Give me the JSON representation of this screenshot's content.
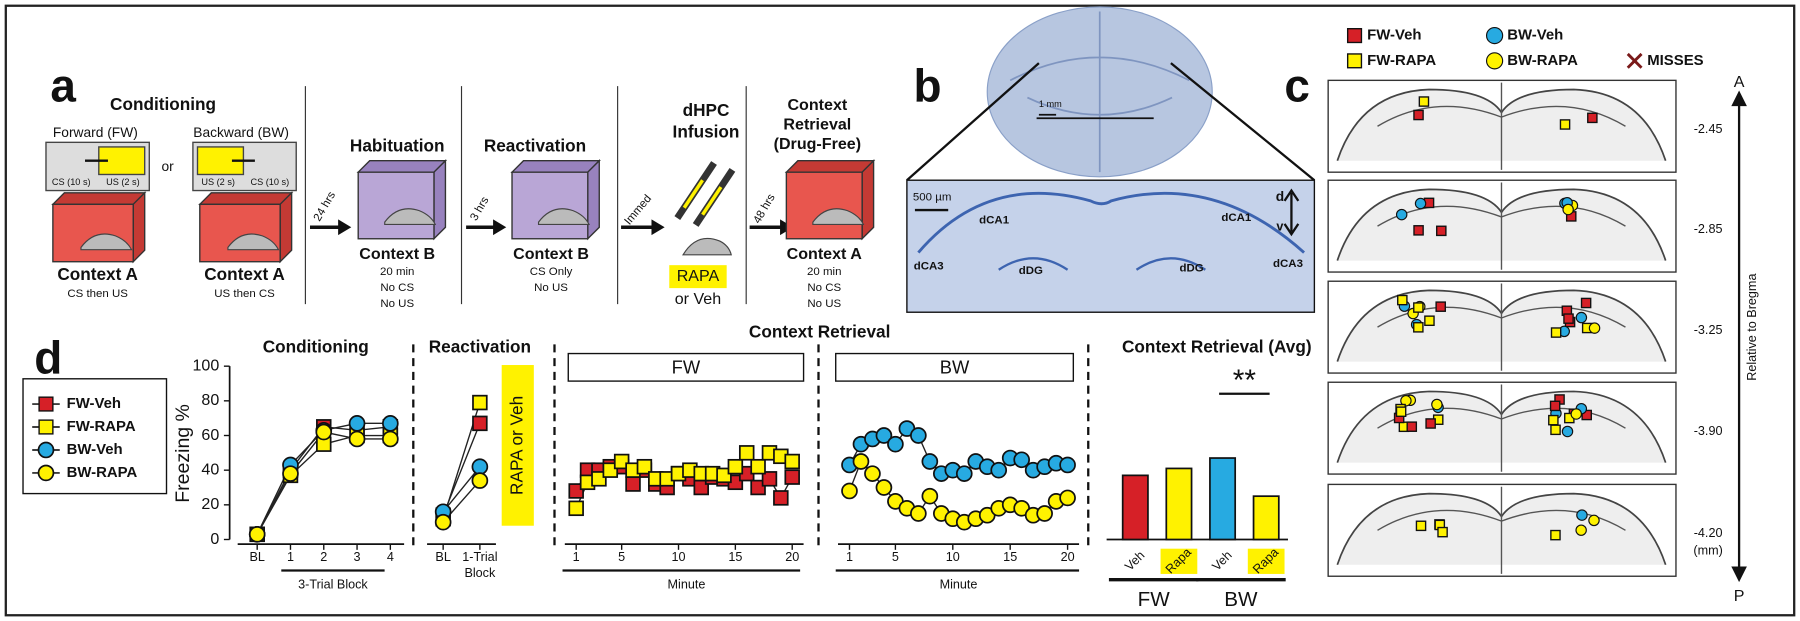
{
  "panel_a": {
    "label": "a",
    "conditioning": {
      "title": "Conditioning",
      "forward": "Forward (FW)",
      "backward": "Backward (BW)",
      "or": "or",
      "fw_cs": "CS (10 s)",
      "fw_us": "US (2 s)",
      "bw_us": "US (2 s)",
      "bw_cs": "CS (10 s)",
      "fw_context": "Context A",
      "fw_note": "CS then US",
      "bw_context": "Context A",
      "bw_note": "US then CS"
    },
    "delay1": "24 hrs",
    "habituation": {
      "title": "Habituation",
      "context": "Context B",
      "lines": [
        "20 min",
        "No CS",
        "No US"
      ]
    },
    "delay2": "3 hrs",
    "reactivation": {
      "title": "Reactivation",
      "context": "Context B",
      "lines": [
        "CS Only",
        "No US"
      ]
    },
    "delay3": "Immed",
    "infusion": {
      "title_lines": [
        "dHPC",
        "Infusion"
      ],
      "drug": "RAPA",
      "alt": "or Veh"
    },
    "delay4": "48 hrs",
    "retrieval": {
      "title_lines": [
        "Context",
        "Retrieval",
        "(Drug-Free)"
      ],
      "context": "Context A",
      "lines": [
        "20 min",
        "No CS",
        "No US"
      ]
    }
  },
  "panel_b": {
    "label": "b",
    "scale_top": "1 mm",
    "scale_detail": "500 µm",
    "regions": [
      "dCA1",
      "dCA1",
      "dCA3",
      "dDG",
      "dDG",
      "dCA3"
    ],
    "dorsal": "d",
    "ventral": "v"
  },
  "panel_c": {
    "label": "c",
    "legend": [
      "FW-Veh",
      "BW-Veh",
      "FW-RAPA",
      "BW-RAPA",
      "MISSES"
    ],
    "levels": [
      "-2.45",
      "-2.85",
      "-3.25",
      "-3.90",
      "-4.20"
    ],
    "unit": "(mm)",
    "anterior": "A",
    "posterior": "P",
    "axis_label": "Relative to Bregma"
  },
  "panel_d": {
    "label": "d",
    "heading": "Context Retrieval"
  },
  "chart_data": [
    {
      "type": "line",
      "title": "Conditioning",
      "x_label": "3-Trial Block",
      "y_label": "Freezing %",
      "categories": [
        "BL",
        "1",
        "2",
        "3",
        "4"
      ],
      "ylim": [
        0,
        100
      ],
      "yticks": [
        0,
        20,
        40,
        60,
        80,
        100
      ],
      "series": [
        {
          "name": "FW-Veh",
          "color": "#d62027",
          "marker": "square",
          "values": [
            3,
            40,
            65,
            63,
            65
          ]
        },
        {
          "name": "FW-RAPA",
          "color": "#fff200",
          "marker": "square",
          "values": [
            3,
            37,
            55,
            60,
            60
          ]
        },
        {
          "name": "BW-Veh",
          "color": "#27aae1",
          "marker": "circle",
          "values": [
            3,
            43,
            63,
            67,
            67
          ]
        },
        {
          "name": "BW-RAPA",
          "color": "#fff200",
          "marker": "circle",
          "values": [
            3,
            38,
            62,
            58,
            58
          ]
        }
      ]
    },
    {
      "type": "line",
      "title": "Reactivation",
      "annotation": "RAPA or Veh",
      "categories": [
        "BL",
        "1-Trial Block"
      ],
      "ylim": [
        0,
        100
      ],
      "series": [
        {
          "name": "FW-Veh",
          "color": "#d62027",
          "marker": "square",
          "values": [
            14,
            67
          ]
        },
        {
          "name": "FW-RAPA",
          "color": "#fff200",
          "marker": "square",
          "values": [
            12,
            79
          ]
        },
        {
          "name": "BW-Veh",
          "color": "#27aae1",
          "marker": "circle",
          "values": [
            16,
            42
          ]
        },
        {
          "name": "BW-RAPA",
          "color": "#fff200",
          "marker": "circle",
          "values": [
            10,
            34
          ]
        }
      ]
    },
    {
      "type": "line",
      "title": "FW",
      "x_label": "Minute",
      "x": [
        1,
        2,
        3,
        4,
        5,
        6,
        7,
        8,
        9,
        10,
        11,
        12,
        13,
        14,
        15,
        16,
        17,
        18,
        19,
        20
      ],
      "xlim": [
        0,
        21
      ],
      "xticks": [
        1,
        5,
        10,
        15,
        20
      ],
      "ylim": [
        0,
        100
      ],
      "series": [
        {
          "name": "FW-Veh",
          "color": "#d62027",
          "marker": "square",
          "values": [
            28,
            40,
            40,
            42,
            42,
            32,
            40,
            32,
            30,
            38,
            35,
            30,
            36,
            35,
            33,
            38,
            30,
            35,
            24,
            36
          ]
        },
        {
          "name": "FW-RAPA",
          "color": "#fff200",
          "marker": "square",
          "values": [
            18,
            33,
            35,
            40,
            45,
            40,
            42,
            35,
            35,
            38,
            40,
            38,
            38,
            37,
            42,
            50,
            42,
            50,
            48,
            45
          ]
        }
      ]
    },
    {
      "type": "line",
      "title": "BW",
      "x_label": "Minute",
      "x": [
        1,
        2,
        3,
        4,
        5,
        6,
        7,
        8,
        9,
        10,
        11,
        12,
        13,
        14,
        15,
        16,
        17,
        18,
        19,
        20
      ],
      "xlim": [
        0,
        21
      ],
      "xticks": [
        1,
        5,
        10,
        15,
        20
      ],
      "ylim": [
        0,
        100
      ],
      "series": [
        {
          "name": "BW-Veh",
          "color": "#27aae1",
          "marker": "circle",
          "values": [
            43,
            55,
            58,
            60,
            55,
            64,
            60,
            45,
            38,
            40,
            38,
            45,
            42,
            40,
            47,
            46,
            40,
            42,
            44,
            43
          ]
        },
        {
          "name": "BW-RAPA",
          "color": "#fff200",
          "marker": "circle",
          "values": [
            28,
            45,
            38,
            30,
            22,
            18,
            15,
            25,
            15,
            12,
            10,
            12,
            14,
            18,
            20,
            18,
            14,
            15,
            22,
            24
          ]
        }
      ]
    },
    {
      "type": "bar",
      "title": "Context Retrieval (Avg)",
      "annotation": "**",
      "categories": [
        "Veh",
        "Rapa",
        "Veh",
        "Rapa"
      ],
      "groups": [
        "FW",
        "BW"
      ],
      "ylim": [
        0,
        100
      ],
      "values": [
        37,
        41,
        47,
        25
      ],
      "colors": [
        "#d62027",
        "#fff200",
        "#27aae1",
        "#fff200"
      ]
    }
  ]
}
